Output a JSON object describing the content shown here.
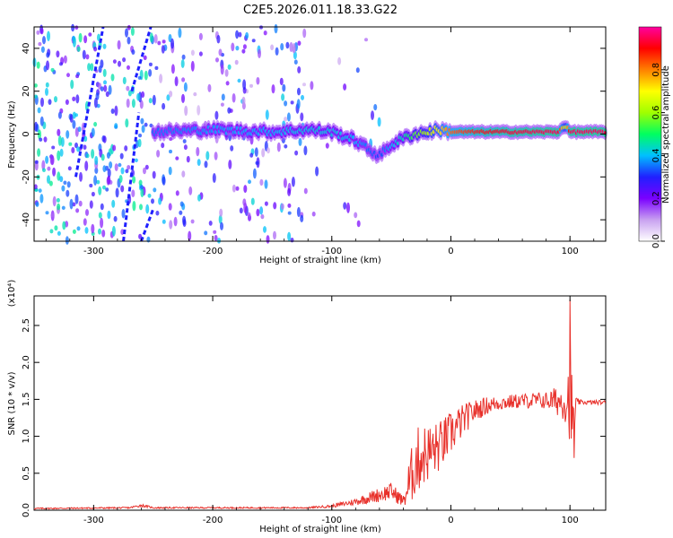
{
  "title": "C2E5.2026.011.18.33.G22",
  "chart_data": [
    {
      "type": "heatmap",
      "xlabel": "Height of straight line (km)",
      "ylabel": "Frequency (Hz)",
      "xlim": [
        -350,
        130
      ],
      "ylim": [
        -50,
        50
      ],
      "x_ticks": [
        -300,
        -200,
        -100,
        0,
        100
      ],
      "y_ticks": [
        -40,
        -20,
        0,
        20,
        40
      ],
      "colorbar": {
        "label": "Normalized spectral amplitude",
        "range": [
          0,
          1
        ],
        "ticks": [
          "0.0",
          "0.2",
          "0.4",
          "0.6",
          "0.8"
        ],
        "tick_values": [
          0,
          0.2,
          0.4,
          0.6,
          0.8
        ],
        "colormap": [
          "#ffffff",
          "#c8a0f0",
          "#7a00ff",
          "#2020ff",
          "#00c0ff",
          "#00ff60",
          "#a0ff00",
          "#ffff00",
          "#ff8000",
          "#ff0000",
          "#ff00a0"
        ]
      },
      "ridge": {
        "heights": [
          -250,
          -200,
          -150,
          -120,
          -100,
          -80,
          -70,
          -60,
          -50,
          -40,
          -30,
          -20,
          -10,
          0,
          20,
          50,
          90,
          96,
          100,
          130
        ],
        "freq": [
          1,
          2,
          1,
          2,
          1,
          -3,
          -7,
          -10,
          -5,
          -2,
          0,
          1,
          2,
          1,
          1,
          1,
          1,
          4,
          1,
          1
        ],
        "amplitude": [
          0.35,
          0.38,
          0.4,
          0.42,
          0.42,
          0.4,
          0.35,
          0.32,
          0.4,
          0.45,
          0.55,
          0.62,
          0.7,
          0.82,
          0.88,
          0.92,
          0.95,
          0.6,
          0.95,
          0.95
        ]
      },
      "tracks": [
        {
          "x": [
            -315,
            -292
          ],
          "y": [
            -20,
            50
          ]
        },
        {
          "x": [
            -260,
            -250
          ],
          "y": [
            -50,
            -35
          ]
        },
        {
          "x": [
            -268,
            -252
          ],
          "y": [
            20,
            50
          ]
        },
        {
          "x": [
            -275,
            -262
          ],
          "y": [
            -50,
            10
          ]
        }
      ]
    },
    {
      "type": "line",
      "xlabel": "Height of straight line (km)",
      "ylabel": "SNR (10 * v/v)",
      "y_multiplier": "(x10⁴)",
      "xlim": [
        -350,
        130
      ],
      "ylim": [
        0,
        2.9
      ],
      "x_ticks": [
        -300,
        -200,
        -100,
        0,
        100
      ],
      "y_ticks": [
        "0.0",
        "0.5",
        "1.0",
        "1.5",
        "2.0",
        "2.5"
      ],
      "y_tick_values": [
        0,
        0.5,
        1.0,
        1.5,
        2.0,
        2.5
      ],
      "color": "#e8302a",
      "envelope": {
        "x": [
          -350,
          -270,
          -260,
          -250,
          -120,
          -100,
          -80,
          -60,
          -50,
          -40,
          -35,
          -30,
          -25,
          -20,
          -10,
          0,
          10,
          20,
          30,
          40,
          60,
          80,
          95,
          100,
          103,
          106,
          110,
          130
        ],
        "base": [
          0.02,
          0.03,
          0.06,
          0.03,
          0.03,
          0.05,
          0.1,
          0.18,
          0.22,
          0.1,
          0.25,
          0.5,
          0.6,
          0.65,
          0.75,
          0.95,
          1.15,
          1.3,
          1.38,
          1.42,
          1.45,
          1.45,
          1.4,
          1.35,
          0.8,
          1.45,
          1.45,
          1.45
        ],
        "noise": [
          0.01,
          0.01,
          0.02,
          0.01,
          0.01,
          0.02,
          0.05,
          0.1,
          0.12,
          0.08,
          0.35,
          0.45,
          0.45,
          0.4,
          0.35,
          0.3,
          0.22,
          0.15,
          0.12,
          0.1,
          0.1,
          0.12,
          0.25,
          0.6,
          0.7,
          0.05,
          0.03,
          0.03
        ]
      },
      "peak": {
        "x": 100,
        "y": 2.85
      }
    }
  ]
}
